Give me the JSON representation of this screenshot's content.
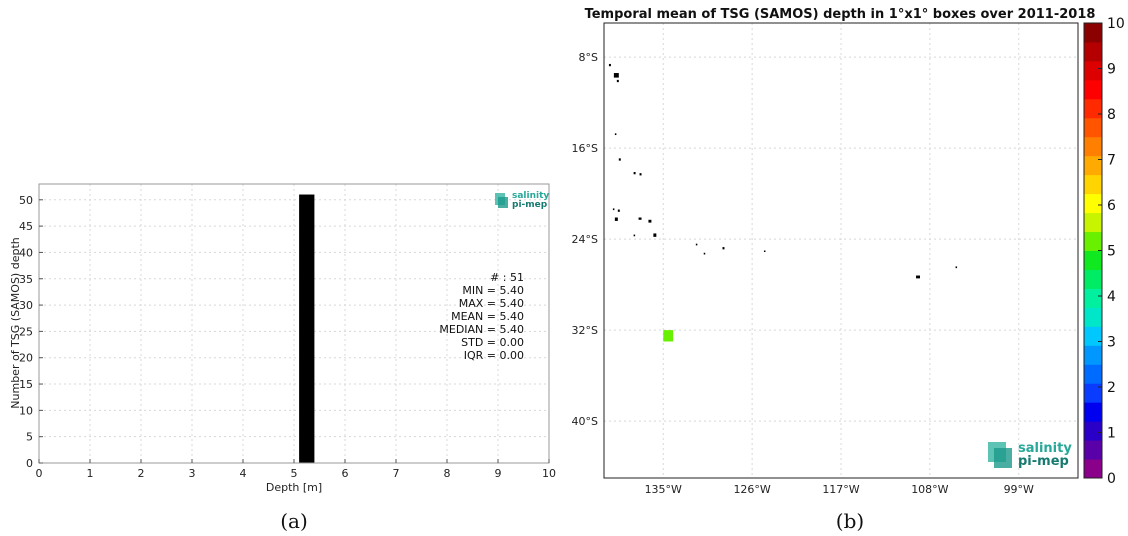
{
  "chart_data": [
    {
      "type": "bar",
      "xlabel": "Depth [m]",
      "ylabel": "Number of TSG (SAMOS) depth",
      "xlim": [
        0,
        10
      ],
      "ylim": [
        0,
        53
      ],
      "xticks": [
        0,
        1,
        2,
        3,
        4,
        5,
        6,
        7,
        8,
        9,
        10
      ],
      "yticks": [
        0,
        5,
        10,
        15,
        20,
        25,
        30,
        35,
        40,
        45,
        50
      ],
      "bins": [
        {
          "x0": 5.1,
          "x1": 5.4,
          "value": 51
        }
      ],
      "bar_color": "#000000",
      "grid": true,
      "stats": [
        "# : 51",
        "MIN = 5.40",
        "MAX =  5.40",
        "MEAN = 5.40",
        "MEDIAN = 5.40",
        "STD = 0.00",
        "IQR = 0.00"
      ],
      "logo": {
        "line1": "salinity",
        "line2": "pi-mep"
      },
      "caption": "(a)"
    },
    {
      "type": "heatmap",
      "title": "Temporal mean of TSG (SAMOS) depth in 1°x1° boxes over 2011-2018",
      "lon_ticks": [
        "135°W",
        "126°W",
        "117°W",
        "108°W",
        "99°W"
      ],
      "lat_ticks": [
        "8°S",
        "16°S",
        "24°S",
        "32°S",
        "40°S"
      ],
      "lon_tick_values": [
        -135,
        -126,
        -117,
        -108,
        -99
      ],
      "lat_tick_values": [
        -8,
        -16,
        -24,
        -32,
        -40
      ],
      "lon_range": [
        -141,
        -93
      ],
      "lat_range": [
        -5,
        -45
      ],
      "cells": [
        {
          "lon": -134.5,
          "lat": -32.5,
          "value": 5.4
        }
      ],
      "colorbar": {
        "min": 0,
        "max": 10,
        "ticks": [
          "0",
          "1",
          "2",
          "3",
          "4",
          "5",
          "6",
          "7",
          "8",
          "9",
          "10"
        ],
        "colors": [
          "#8b008b",
          "#5a00a8",
          "#2a00c8",
          "#0000f0",
          "#0a3cff",
          "#006cff",
          "#0098ff",
          "#00c8ff",
          "#00e6c8",
          "#00f0a0",
          "#00ec64",
          "#10e820",
          "#68f000",
          "#c8f400",
          "#ffff00",
          "#ffd400",
          "#ffaa00",
          "#ff8000",
          "#ff5500",
          "#ff2a00",
          "#ff0000",
          "#dd0000",
          "#b40000",
          "#8b0000"
        ]
      },
      "land": [
        {
          "lon": -140.5,
          "lat": -8.6,
          "w": 0.2,
          "h": 0.2
        },
        {
          "lon": -140.0,
          "lat": -9.4,
          "w": 0.5,
          "h": 0.4
        },
        {
          "lon": -139.7,
          "lat": -10.0,
          "w": 0.2,
          "h": 0.2
        },
        {
          "lon": -139.9,
          "lat": -14.7,
          "w": 0.15,
          "h": 0.15
        },
        {
          "lon": -139.5,
          "lat": -16.9,
          "w": 0.2,
          "h": 0.2
        },
        {
          "lon": -138.0,
          "lat": -18.1,
          "w": 0.2,
          "h": 0.2
        },
        {
          "lon": -137.4,
          "lat": -18.2,
          "w": 0.2,
          "h": 0.2
        },
        {
          "lon": -140.1,
          "lat": -21.3,
          "w": 0.15,
          "h": 0.15
        },
        {
          "lon": -139.6,
          "lat": -21.4,
          "w": 0.2,
          "h": 0.2
        },
        {
          "lon": -139.9,
          "lat": -22.1,
          "w": 0.3,
          "h": 0.3
        },
        {
          "lon": -137.5,
          "lat": -22.1,
          "w": 0.3,
          "h": 0.2
        },
        {
          "lon": -136.5,
          "lat": -22.3,
          "w": 0.3,
          "h": 0.25
        },
        {
          "lon": -136.0,
          "lat": -23.5,
          "w": 0.3,
          "h": 0.3
        },
        {
          "lon": -138.0,
          "lat": -23.6,
          "w": 0.15,
          "h": 0.15
        },
        {
          "lon": -131.7,
          "lat": -24.4,
          "w": 0.15,
          "h": 0.15
        },
        {
          "lon": -130.9,
          "lat": -25.2,
          "w": 0.15,
          "h": 0.15
        },
        {
          "lon": -129.0,
          "lat": -24.7,
          "w": 0.2,
          "h": 0.2
        },
        {
          "lon": -124.8,
          "lat": -25.0,
          "w": 0.1,
          "h": 0.1
        },
        {
          "lon": -109.4,
          "lat": -27.2,
          "w": 0.4,
          "h": 0.25
        },
        {
          "lon": -105.4,
          "lat": -26.4,
          "w": 0.15,
          "h": 0.15
        }
      ],
      "logo": {
        "line1": "salinity",
        "line2": "pi-mep"
      },
      "caption": "(b)"
    }
  ]
}
